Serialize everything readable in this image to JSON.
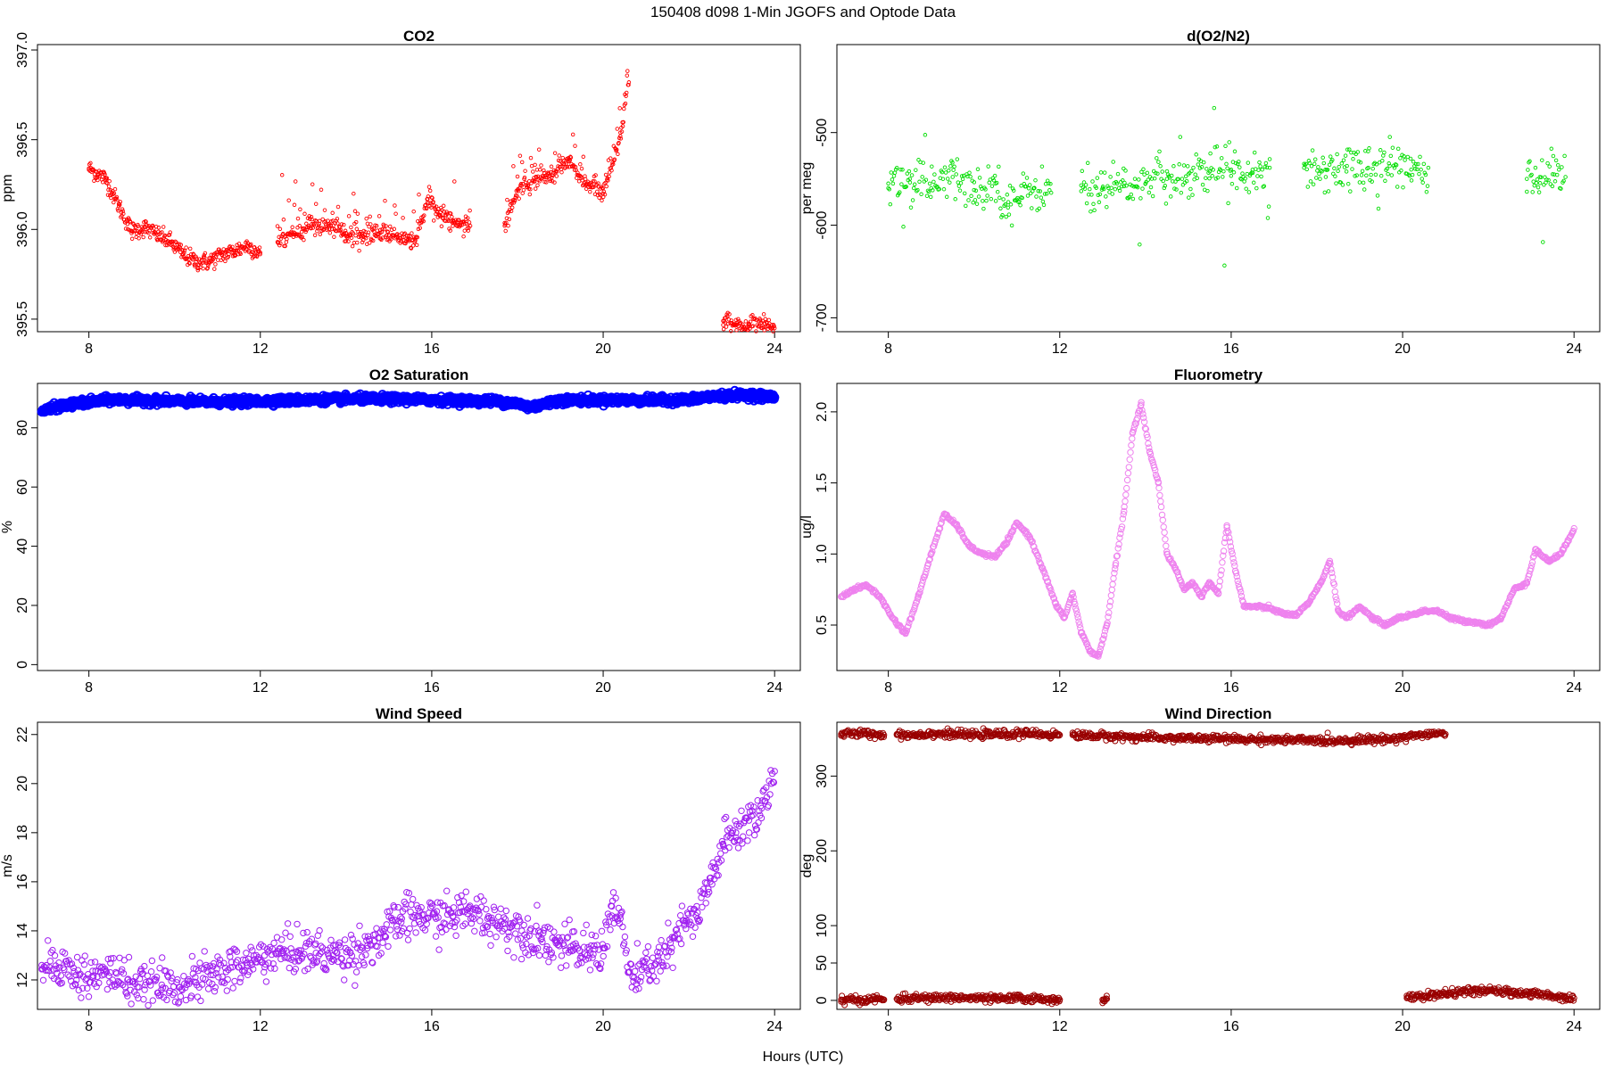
{
  "figure": {
    "title": "150408   d098   1-Min  JGOFS and Optode Data",
    "xlabel": "Hours (UTC)"
  },
  "chart_data": [
    {
      "type": "scatter",
      "title": "CO2",
      "xlabel": "",
      "ylabel": "ppm",
      "xlim": [
        6.8,
        24.6
      ],
      "ylim": [
        395.43,
        397.03
      ],
      "xticks": [
        8,
        12,
        16,
        20,
        24
      ],
      "xtick_labels": [
        "8",
        "12",
        "16",
        "20",
        "24"
      ],
      "yticks": [
        395.5,
        396.0,
        396.5,
        397.0
      ],
      "ytick_labels": [
        "395.5",
        "396.0",
        "396.5",
        "397.0"
      ],
      "ytick_labels_rotated": true,
      "color": "#ff0000",
      "marker": "small-open-circle",
      "segments": [
        {
          "x": [
            8.0,
            8.4,
            8.7,
            9.0,
            9.3,
            9.6,
            9.9,
            10.2,
            10.5,
            10.8,
            11.1,
            11.4,
            11.7,
            12.0
          ],
          "y": [
            396.34,
            396.28,
            396.13,
            395.99,
            396.01,
            395.97,
            395.93,
            395.86,
            395.82,
            395.82,
            395.86,
            395.88,
            395.91,
            395.87
          ]
        },
        {
          "x": [
            12.4,
            12.8,
            13.2,
            13.6,
            14.0,
            14.4,
            14.8,
            15.2,
            15.6,
            15.9,
            16.2,
            16.5,
            16.9
          ],
          "y": [
            395.93,
            395.97,
            396.03,
            396.02,
            395.98,
            395.96,
            395.98,
            395.96,
            395.93,
            396.15,
            396.08,
            396.05,
            396.02
          ]
        },
        {
          "x": [
            17.7,
            18.0,
            18.4,
            18.8,
            19.2,
            19.6,
            20.0,
            20.4,
            20.6
          ],
          "y": [
            396.02,
            396.22,
            396.27,
            396.29,
            396.38,
            396.25,
            396.2,
            396.52,
            396.82
          ]
        },
        {
          "x": [
            22.8,
            23.1,
            23.4,
            23.7,
            24.0
          ],
          "y": [
            395.49,
            395.47,
            395.46,
            395.48,
            395.45
          ]
        }
      ]
    },
    {
      "type": "scatter",
      "title": "d(O2/N2)",
      "xlabel": "",
      "ylabel": "per meg",
      "xlim": [
        6.8,
        24.6
      ],
      "ylim": [
        -715,
        -405
      ],
      "xticks": [
        8,
        12,
        16,
        20,
        24
      ],
      "xtick_labels": [
        "8",
        "12",
        "16",
        "20",
        "24"
      ],
      "yticks": [
        -700,
        -600,
        -500
      ],
      "ytick_labels": [
        "-700",
        "-600",
        "-500"
      ],
      "ytick_labels_rotated": true,
      "color": "#00dd00",
      "marker": "small-open-circle",
      "segments": [
        {
          "x": [
            8.0,
            8.5,
            9.0,
            9.5,
            10.0,
            10.5,
            10.8,
            11.1,
            11.4,
            11.8
          ],
          "y": [
            -555,
            -550,
            -560,
            -548,
            -562,
            -555,
            -575,
            -570,
            -560,
            -565
          ]
        },
        {
          "x": [
            12.5,
            13.0,
            13.5,
            14.0,
            14.5,
            15.0,
            15.5,
            16.0,
            16.5,
            16.9
          ],
          "y": [
            -557,
            -560,
            -558,
            -555,
            -550,
            -545,
            -542,
            -540,
            -540,
            -538
          ]
        },
        {
          "x": [
            17.7,
            18.2,
            18.7,
            19.2,
            19.7,
            20.2,
            20.6
          ],
          "y": [
            -538,
            -540,
            -536,
            -538,
            -536,
            -540,
            -538
          ]
        },
        {
          "x": [
            22.9,
            23.2,
            23.5,
            23.8
          ],
          "y": [
            -550,
            -548,
            -545,
            -548
          ]
        }
      ]
    },
    {
      "type": "scatter",
      "title": "O2 Saturation",
      "xlabel": "",
      "ylabel": "%",
      "xlim": [
        6.8,
        24.6
      ],
      "ylim": [
        -2,
        95
      ],
      "xticks": [
        8,
        12,
        16,
        20,
        24
      ],
      "xtick_labels": [
        "8",
        "12",
        "16",
        "20",
        "24"
      ],
      "yticks": [
        0,
        20,
        40,
        60,
        80
      ],
      "ytick_labels": [
        "0",
        "20",
        "40",
        "60",
        "80"
      ],
      "ytick_labels_rotated": true,
      "color": "#0000ff",
      "marker": "thick-line",
      "segments": [
        {
          "x": [
            6.9,
            7.3,
            7.8,
            8.5,
            9.5,
            10.5,
            11.5,
            12.5,
            13.5,
            14.5,
            15.5,
            16.5,
            17.5,
            18.0,
            18.3,
            18.6,
            19.0,
            20.0,
            21.0,
            22.0,
            22.5,
            23.0,
            23.5,
            24.0
          ],
          "y": [
            85.5,
            87.3,
            88.3,
            89.5,
            89.2,
            88.8,
            88.8,
            89.2,
            89.6,
            89.8,
            89.6,
            89.3,
            89.0,
            88.2,
            87.0,
            88.0,
            89.3,
            89.4,
            89.3,
            89.5,
            90.5,
            91.0,
            91.0,
            90.3
          ]
        }
      ]
    },
    {
      "type": "scatter",
      "title": "Fluorometry",
      "xlabel": "",
      "ylabel": "ug/l",
      "xlim": [
        6.8,
        24.6
      ],
      "ylim": [
        0.18,
        2.2
      ],
      "xticks": [
        8,
        12,
        16,
        20,
        24
      ],
      "xtick_labels": [
        "8",
        "12",
        "16",
        "20",
        "24"
      ],
      "yticks": [
        0.5,
        1.0,
        1.5,
        2.0
      ],
      "ytick_labels": [
        "0.5",
        "1.0",
        "1.5",
        "2.0"
      ],
      "ytick_labels_rotated": true,
      "color": "#ee82ee",
      "marker": "open-circle",
      "segments": [
        {
          "x": [
            6.9,
            7.2,
            7.5,
            7.8,
            8.1,
            8.4,
            8.7,
            9.0,
            9.3,
            9.6,
            9.9,
            10.2,
            10.5,
            10.8,
            11.0,
            11.3,
            11.6,
            11.9,
            12.1,
            12.3,
            12.5,
            12.7,
            12.9,
            13.1,
            13.3,
            13.5,
            13.7,
            13.9,
            14.1,
            14.3,
            14.5,
            14.7,
            14.9,
            15.1,
            15.3,
            15.5,
            15.7,
            15.9,
            16.1,
            16.3,
            16.6,
            16.9,
            17.2,
            17.5,
            17.8,
            18.1,
            18.3,
            18.5,
            18.7,
            19.0,
            19.3,
            19.6,
            19.9,
            20.2,
            20.5,
            20.8,
            21.1,
            21.4,
            21.7,
            22.0,
            22.3,
            22.6,
            22.9,
            23.1,
            23.4,
            23.7,
            24.0
          ],
          "y": [
            0.7,
            0.75,
            0.78,
            0.7,
            0.55,
            0.44,
            0.7,
            1.0,
            1.28,
            1.2,
            1.05,
            1.0,
            0.98,
            1.1,
            1.22,
            1.12,
            0.9,
            0.65,
            0.55,
            0.72,
            0.45,
            0.32,
            0.28,
            0.5,
            0.92,
            1.3,
            1.85,
            2.05,
            1.72,
            1.5,
            1.0,
            0.9,
            0.75,
            0.8,
            0.7,
            0.8,
            0.72,
            1.2,
            0.88,
            0.63,
            0.63,
            0.62,
            0.58,
            0.57,
            0.65,
            0.8,
            0.95,
            0.6,
            0.55,
            0.63,
            0.55,
            0.5,
            0.55,
            0.57,
            0.6,
            0.6,
            0.55,
            0.53,
            0.52,
            0.5,
            0.55,
            0.75,
            0.8,
            1.03,
            0.95,
            1.0,
            1.18
          ]
        }
      ]
    },
    {
      "type": "scatter",
      "title": "Wind Speed",
      "xlabel": "",
      "ylabel": "m/s",
      "xlim": [
        6.8,
        24.6
      ],
      "ylim": [
        10.8,
        22.5
      ],
      "xticks": [
        8,
        12,
        16,
        20,
        24
      ],
      "xtick_labels": [
        "8",
        "12",
        "16",
        "20",
        "24"
      ],
      "yticks": [
        12,
        14,
        16,
        18,
        20,
        22
      ],
      "ytick_labels": [
        "12",
        "14",
        "16",
        "18",
        "20",
        "22"
      ],
      "ytick_labels_rotated": true,
      "color": "#a020f0",
      "marker": "open-circle",
      "segments": [
        {
          "x": [
            6.9,
            7.3,
            7.7,
            8.1,
            8.5,
            8.9,
            9.3,
            9.7,
            10.1,
            10.5,
            10.9,
            11.3,
            11.7,
            12.1,
            12.5,
            12.9,
            13.3,
            13.7,
            14.1,
            14.5,
            14.9,
            15.3,
            15.7,
            16.1,
            16.5,
            16.9,
            17.3,
            17.7,
            18.1,
            18.5,
            18.9,
            19.3,
            19.7,
            20.0,
            20.2,
            20.4,
            20.6,
            20.8,
            21.0,
            21.3,
            21.6,
            21.9,
            22.2,
            22.5,
            22.8,
            23.1,
            23.4,
            23.7,
            24.0
          ],
          "y": [
            12.6,
            12.7,
            12.2,
            12.1,
            12.3,
            12.0,
            11.6,
            11.8,
            11.7,
            11.9,
            12.2,
            12.5,
            12.6,
            13.0,
            13.1,
            13.2,
            13.1,
            13.0,
            13.1,
            13.4,
            13.8,
            14.5,
            14.6,
            14.5,
            14.6,
            14.8,
            14.5,
            14.3,
            14.0,
            13.8,
            13.5,
            13.2,
            13.1,
            13.3,
            15.0,
            14.5,
            12.3,
            12.0,
            12.5,
            12.8,
            13.3,
            14.3,
            14.5,
            16.0,
            17.5,
            18.0,
            18.5,
            19.0,
            20.5
          ]
        }
      ]
    },
    {
      "type": "scatter",
      "title": "Wind Direction",
      "xlabel": "",
      "ylabel": "deg",
      "xlim": [
        6.8,
        24.6
      ],
      "ylim": [
        -12,
        372
      ],
      "xticks": [
        8,
        12,
        16,
        20,
        24
      ],
      "xtick_labels": [
        "8",
        "12",
        "16",
        "20",
        "24"
      ],
      "yticks": [
        0,
        50,
        100,
        200,
        300
      ],
      "ytick_labels": [
        "0",
        "50",
        "100",
        "200",
        "300"
      ],
      "ytick_labels_rotated": true,
      "color": "#990000",
      "marker": "open-circle",
      "segments": [
        {
          "x": [
            6.9,
            7.3,
            7.7,
            7.9
          ],
          "y": [
            356,
            357,
            356,
            355
          ]
        },
        {
          "x": [
            8.2,
            8.6,
            9.0,
            9.5,
            9.9,
            10.3,
            10.8,
            11.2,
            11.6,
            12.0
          ],
          "y": [
            356,
            355,
            357,
            356,
            355,
            356,
            356,
            357,
            356,
            355
          ]
        },
        {
          "x": [
            12.3,
            12.8,
            13.3,
            13.8,
            14.3,
            14.8,
            15.3,
            15.8,
            16.3,
            16.8,
            17.3,
            17.8,
            18.3,
            18.8,
            19.3,
            19.8,
            20.0,
            20.5,
            21.0
          ],
          "y": [
            355,
            354,
            353,
            352,
            351,
            351,
            350,
            350,
            349,
            349,
            348,
            348,
            347,
            348,
            349,
            350,
            352,
            356,
            356
          ]
        },
        {
          "x": [
            6.9,
            7.3,
            7.7,
            7.9
          ],
          "y": [
            1,
            0,
            2,
            1
          ]
        },
        {
          "x": [
            8.2,
            8.6,
            9.0,
            9.5,
            10.0,
            10.5,
            11.0,
            11.5,
            12.0
          ],
          "y": [
            2,
            3,
            3,
            4,
            3,
            2,
            3,
            2,
            1
          ]
        },
        {
          "x": [
            13.0,
            13.1
          ],
          "y": [
            1,
            2
          ]
        },
        {
          "x": [
            20.1,
            20.5,
            21.0,
            21.5,
            22.0,
            22.5,
            23.0,
            23.5,
            24.0
          ],
          "y": [
            3,
            6,
            9,
            12,
            13,
            11,
            9,
            6,
            3
          ]
        }
      ]
    }
  ]
}
